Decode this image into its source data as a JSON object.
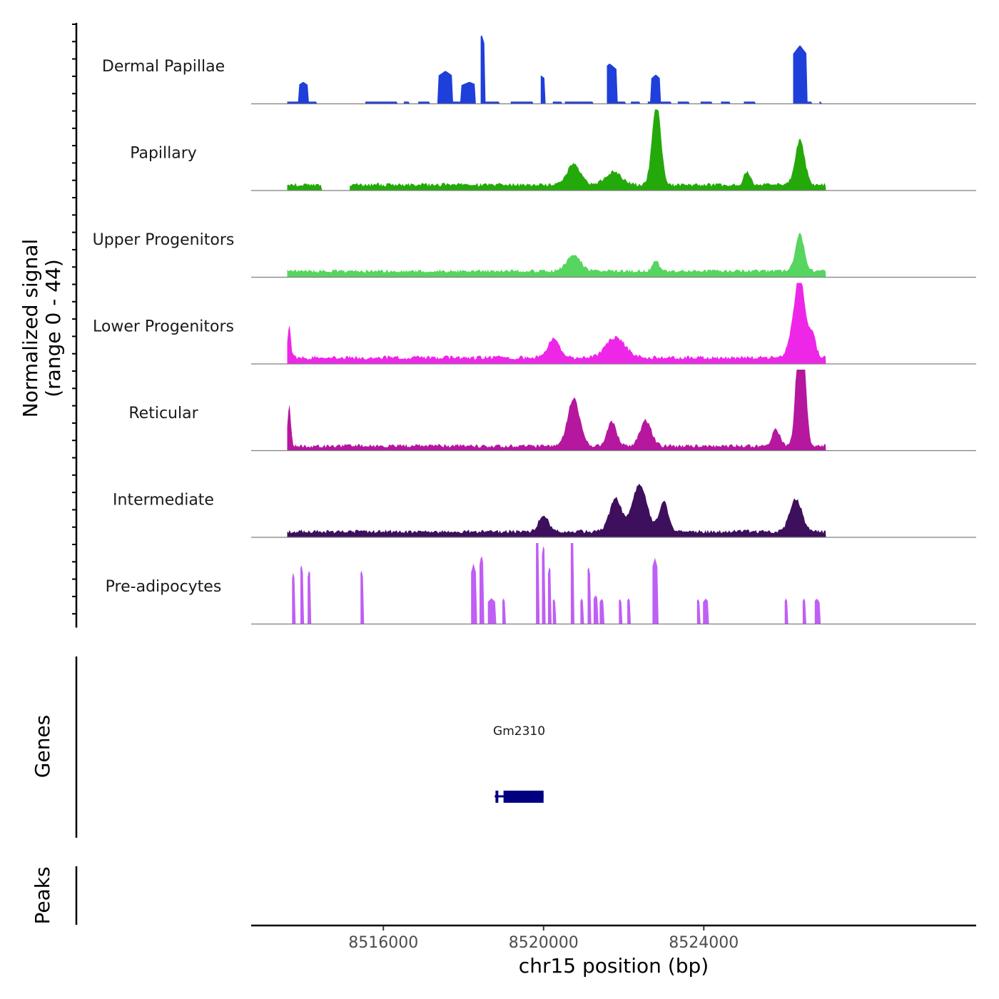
{
  "chart_data": {
    "type": "area",
    "chromosome": "chr15",
    "xlabel": "chr15 position (bp)",
    "ylabel_lines": [
      "Normalized signal",
      "(range 0 - 44)"
    ],
    "y_range": [
      0,
      44
    ],
    "x_range": [
      8512700,
      8530800
    ],
    "data_extent": [
      8513600,
      8527050
    ],
    "x_ticks": [
      {
        "value": 8516000,
        "label": "8516000"
      },
      {
        "value": 8520000,
        "label": "8520000"
      },
      {
        "value": 8524000,
        "label": "8524000"
      }
    ],
    "tracks": [
      {
        "name": "Dermal Papillae",
        "color": "#1f3fdb",
        "style": "blocky",
        "baseline": 1.2,
        "noise": 0.0,
        "gaps": [
          [
            8514350,
            8515520
          ],
          [
            8516350,
            8516480
          ],
          [
            8516650,
            8516850
          ],
          [
            8517150,
            8517320
          ],
          [
            8518300,
            8518400
          ],
          [
            8518900,
            8519150
          ],
          [
            8519750,
            8519900
          ],
          [
            8520050,
            8520200
          ],
          [
            8520450,
            8520520
          ],
          [
            8521250,
            8521550
          ],
          [
            8522050,
            8522150
          ],
          [
            8522420,
            8522580
          ],
          [
            8523180,
            8523340
          ],
          [
            8523650,
            8523900
          ],
          [
            8524200,
            8524400
          ],
          [
            8524650,
            8524980
          ],
          [
            8525300,
            8526200
          ],
          [
            8526700,
            8526870
          ],
          [
            8526930,
            8527100
          ]
        ],
        "peaks": [
          [
            8514000,
            12,
            120
          ],
          [
            8517550,
            18,
            180
          ],
          [
            8518450,
            38,
            80
          ],
          [
            8518150,
            12,
            200
          ],
          [
            8519900,
            16,
            150
          ],
          [
            8521650,
            22,
            180
          ],
          [
            8522800,
            16,
            120
          ],
          [
            8526400,
            32,
            170
          ],
          [
            8526980,
            10,
            25
          ]
        ]
      },
      {
        "name": "Papillary",
        "color": "#24a90b",
        "style": "smooth",
        "baseline": 2.2,
        "noise": 2.0,
        "gaps": [
          [
            8514450,
            8515150
          ]
        ],
        "peaks": [
          [
            8522820,
            44,
            110
          ],
          [
            8520750,
            11,
            170
          ],
          [
            8521750,
            7,
            200
          ],
          [
            8526400,
            24,
            120
          ],
          [
            8525080,
            7,
            80
          ]
        ]
      },
      {
        "name": "Upper Progenitors",
        "color": "#56d560",
        "style": "smooth",
        "baseline": 2.5,
        "noise": 1.8,
        "gaps": [],
        "peaks": [
          [
            8526400,
            20,
            110
          ],
          [
            8520750,
            9,
            170
          ],
          [
            8522800,
            6,
            80
          ]
        ]
      },
      {
        "name": "Lower Progenitors",
        "color": "#ee26e8",
        "style": "smooth",
        "baseline": 2.4,
        "noise": 2.2,
        "gaps": [],
        "peaks": [
          [
            8513650,
            18,
            40
          ],
          [
            8526420,
            40,
            110
          ],
          [
            8526250,
            16,
            120
          ],
          [
            8526700,
            14,
            90
          ],
          [
            8520250,
            10,
            150
          ],
          [
            8521800,
            11,
            240
          ]
        ]
      },
      {
        "name": "Reticular",
        "color": "#b5179e",
        "style": "smooth",
        "baseline": 1.6,
        "noise": 2.0,
        "gaps": [],
        "peaks": [
          [
            8526420,
            80,
            100
          ],
          [
            8513650,
            22,
            40
          ],
          [
            8520750,
            26,
            150
          ],
          [
            8521700,
            13,
            120
          ],
          [
            8522550,
            14,
            140
          ],
          [
            8525800,
            9,
            100
          ]
        ]
      },
      {
        "name": "Intermediate",
        "color": "#3d0f5c",
        "style": "smooth",
        "baseline": 2.2,
        "noise": 2.0,
        "gaps": [],
        "peaks": [
          [
            8522400,
            26,
            180
          ],
          [
            8521800,
            18,
            150
          ],
          [
            8523000,
            16,
            120
          ],
          [
            8526300,
            18,
            150
          ],
          [
            8520000,
            9,
            120
          ]
        ]
      },
      {
        "name": "Pre-adipocytes",
        "color": "#c05ef5",
        "style": "blocky",
        "baseline": 0.0,
        "noise": 0.0,
        "gaps": [],
        "peaks": [
          [
            8513750,
            28,
            40
          ],
          [
            8513950,
            33,
            40
          ],
          [
            8514150,
            30,
            40
          ],
          [
            8515450,
            30,
            40
          ],
          [
            8518250,
            33,
            60
          ],
          [
            8518450,
            38,
            50
          ],
          [
            8518700,
            14,
            100
          ],
          [
            8519000,
            14,
            40
          ],
          [
            8519830,
            72,
            40
          ],
          [
            8520000,
            44,
            40
          ],
          [
            8520150,
            32,
            40
          ],
          [
            8520250,
            14,
            40
          ],
          [
            8520700,
            58,
            40
          ],
          [
            8520950,
            14,
            40
          ],
          [
            8521120,
            32,
            40
          ],
          [
            8521300,
            16,
            50
          ],
          [
            8521450,
            14,
            50
          ],
          [
            8521900,
            14,
            40
          ],
          [
            8522120,
            14,
            50
          ],
          [
            8522780,
            36,
            70
          ],
          [
            8523850,
            14,
            40
          ],
          [
            8524050,
            14,
            70
          ],
          [
            8526050,
            14,
            40
          ],
          [
            8526500,
            14,
            40
          ],
          [
            8526820,
            14,
            70
          ]
        ]
      }
    ],
    "genes": [
      {
        "name": "Gm2310",
        "start": 8518780,
        "end": 8520000,
        "exons": [
          [
            8518800,
            8518870
          ],
          [
            8519000,
            8520000
          ]
        ],
        "color": "#000080"
      }
    ],
    "panels": {
      "genes_label": "Genes",
      "peaks_label": "Peaks"
    }
  }
}
